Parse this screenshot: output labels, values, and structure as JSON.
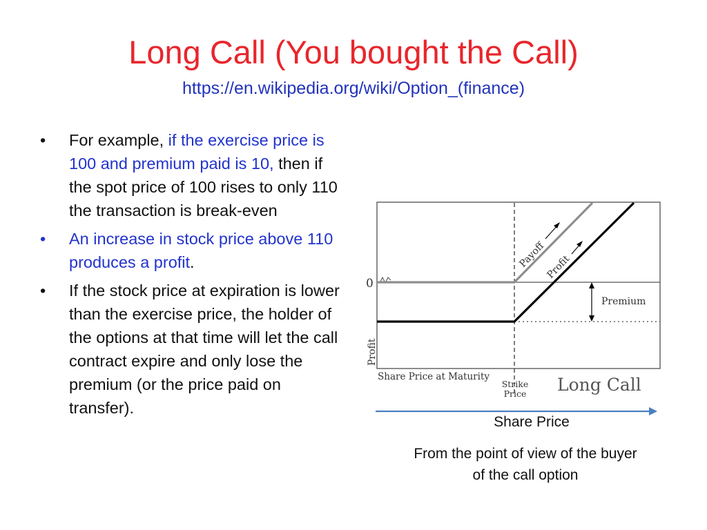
{
  "title": "Long Call (You bought the Call)",
  "subtitle": "https://en.wikipedia.org/wiki/Option_(finance)",
  "bullets": {
    "b1_plain1": "For example, ",
    "b1_blue": "if the exercise price is 100 and premium paid is 10,",
    "b1_plain2": " then if the spot price of 100 rises to only 110 the transaction is break-even",
    "b2_blue": "An increase in stock price above 110 produces a profit",
    "b2_plain": ".",
    "b3": "If the stock price at expiration is lower than the exercise price, the holder of the options at that time will let the call contract expire and only lose the premium (or the price paid on transfer)."
  },
  "diagram": {
    "zero_label": "0",
    "y_axis_label": "Profit",
    "x_axis_label": "Share Price at Maturity",
    "strike_label_1": "Strike",
    "strike_label_2": "Price",
    "payoff_label": "Payoff",
    "profit_label": "Profit",
    "premium_label": "Premium",
    "chart_title": "Long Call"
  },
  "caption_share_price": "Share Price",
  "caption_view": "From the point of view of the buyer of the call option",
  "colors": {
    "title": "#e8262c",
    "link": "#2233bb",
    "highlight": "#2233cc",
    "arrow": "#4a7fc0"
  }
}
